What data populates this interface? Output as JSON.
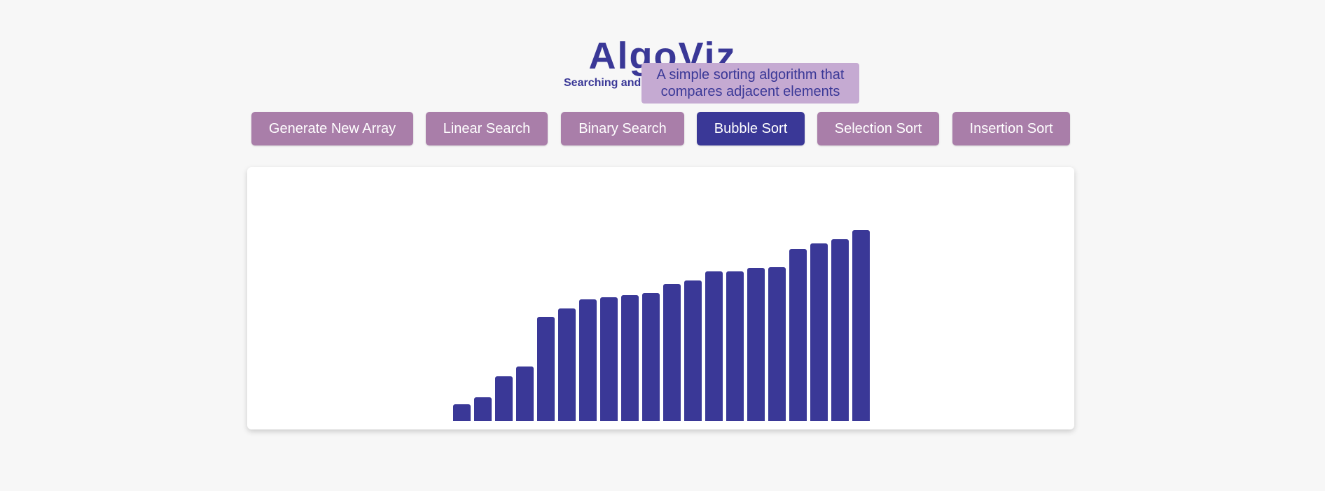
{
  "header": {
    "title": "AlgoViz",
    "subtitle": "Searching and"
  },
  "tooltip": {
    "text": "A simple sorting algorithm that compares adjacent elements"
  },
  "toolbar": {
    "buttons": [
      {
        "label": "Generate New Array",
        "active": false
      },
      {
        "label": "Linear Search",
        "active": false
      },
      {
        "label": "Binary Search",
        "active": false
      },
      {
        "label": "Bubble Sort",
        "active": true
      },
      {
        "label": "Selection Sort",
        "active": false
      },
      {
        "label": "Insertion Sort",
        "active": false
      }
    ]
  },
  "colors": {
    "primary": "#3a3897",
    "button": "#a97ea9",
    "tooltip_bg": "#c5aad2",
    "background": "#f7f7f7"
  },
  "visualizer": {
    "array": [
      24,
      34,
      64,
      78,
      149,
      161,
      174,
      177,
      180,
      183,
      196,
      201,
      214,
      214,
      219,
      220,
      246,
      254,
      260,
      273
    ]
  }
}
